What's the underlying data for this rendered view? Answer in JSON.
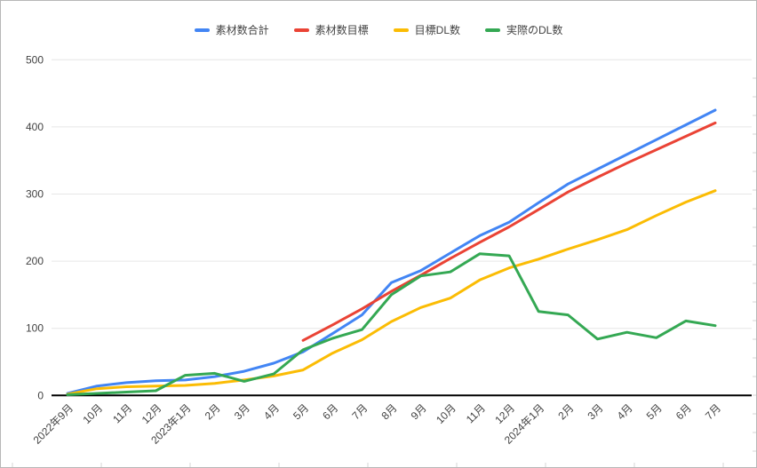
{
  "chart_data": {
    "type": "line",
    "title": "",
    "xlabel": "",
    "ylabel": "",
    "ylim": [
      0,
      500
    ],
    "y_ticks": [
      0,
      100,
      200,
      300,
      400,
      500
    ],
    "grid": true,
    "legend_position": "top",
    "categories": [
      "2022年9月",
      "10月",
      "11月",
      "12月",
      "2023年1月",
      "2月",
      "3月",
      "4月",
      "5月",
      "6月",
      "7月",
      "8月",
      "9月",
      "10月",
      "11月",
      "12月",
      "2024年1月",
      "2月",
      "3月",
      "4月",
      "5月",
      "6月",
      "7月"
    ],
    "series": [
      {
        "name": "素材数合計",
        "color": "#4285f4",
        "values": [
          3,
          14,
          19,
          22,
          23,
          28,
          36,
          48,
          65,
          92,
          120,
          168,
          186,
          212,
          238,
          258,
          287,
          315,
          337,
          359,
          381,
          403,
          425
        ]
      },
      {
        "name": "素材数目標",
        "color": "#ea4335",
        "values": [
          null,
          null,
          null,
          null,
          null,
          null,
          null,
          null,
          82,
          105,
          129,
          155,
          179,
          204,
          228,
          251,
          277,
          303,
          325,
          346,
          366,
          386,
          406
        ]
      },
      {
        "name": "目標DL数",
        "color": "#fbbc04",
        "values": [
          2,
          10,
          13,
          14,
          15,
          18,
          23,
          29,
          38,
          63,
          83,
          110,
          131,
          145,
          172,
          190,
          203,
          218,
          232,
          247,
          268,
          288,
          305
        ]
      },
      {
        "name": "実際のDL数",
        "color": "#34a853",
        "values": [
          1,
          3,
          5,
          7,
          30,
          33,
          21,
          32,
          68,
          85,
          98,
          150,
          178,
          184,
          211,
          208,
          125,
          120,
          84,
          94,
          86,
          111,
          104
        ]
      }
    ]
  },
  "style": {
    "axis_text_color": "#424242",
    "grid_color": "#e6e6e6",
    "zero_axis_color": "#000000",
    "sheet_tick_color": "#d5d5d5",
    "background": "#ffffff"
  }
}
